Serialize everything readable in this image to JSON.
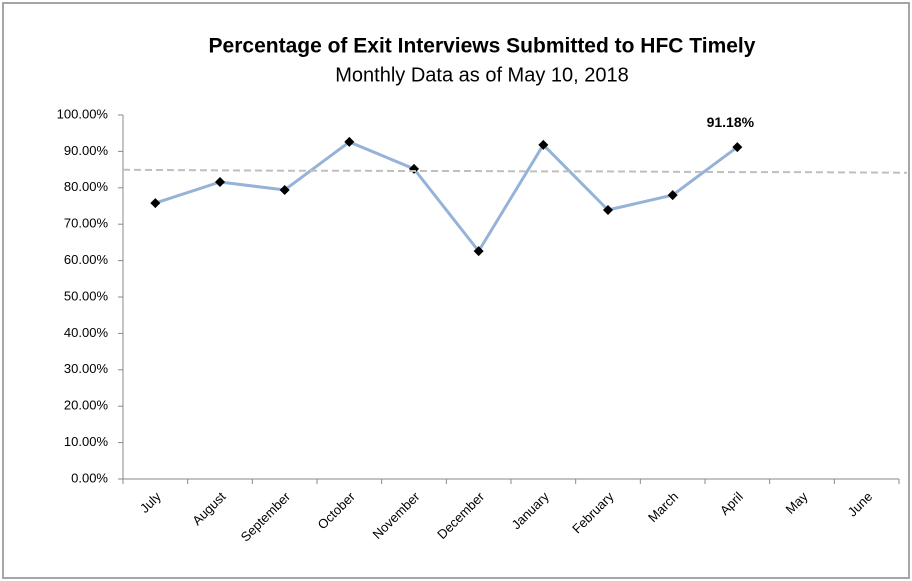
{
  "chart_data": {
    "type": "line",
    "title": "Percentage of Exit Interviews Submitted to HFC Timely",
    "subtitle": "Monthly Data as of May 10, 2018",
    "categories": [
      "July",
      "August",
      "September",
      "October",
      "November",
      "December",
      "January",
      "February",
      "March",
      "April",
      "May",
      "June"
    ],
    "series": [
      {
        "color": "#95b3d7",
        "marker_color": "#000000",
        "values": [
          75.8,
          81.6,
          79.4,
          92.6,
          85.2,
          62.6,
          91.8,
          73.9,
          78.0,
          91.18,
          null,
          null
        ],
        "value_labels": [
          null,
          null,
          null,
          null,
          null,
          null,
          null,
          null,
          null,
          "91.18%",
          null,
          null
        ]
      },
      {
        "color": "#bfbfbf",
        "dashed": true,
        "values": [
          84.9,
          84.8,
          84.7,
          84.7,
          84.6,
          84.6,
          84.5,
          84.5,
          84.4,
          84.3,
          84.3,
          84.2
        ]
      }
    ],
    "ylim": [
      0,
      100
    ],
    "yticks": [
      {
        "value": 0,
        "label": "0.00%"
      },
      {
        "value": 10,
        "label": "10.00%"
      },
      {
        "value": 20,
        "label": "20.00%"
      },
      {
        "value": 30,
        "label": "30.00%"
      },
      {
        "value": 40,
        "label": "40.00%"
      },
      {
        "value": 50,
        "label": "50.00%"
      },
      {
        "value": 60,
        "label": "60.00%"
      },
      {
        "value": 70,
        "label": "70.00%"
      },
      {
        "value": 80,
        "label": "80.00%"
      },
      {
        "value": 90,
        "label": "90.00%"
      },
      {
        "value": 100,
        "label": "100.00%"
      }
    ],
    "grid": false
  }
}
